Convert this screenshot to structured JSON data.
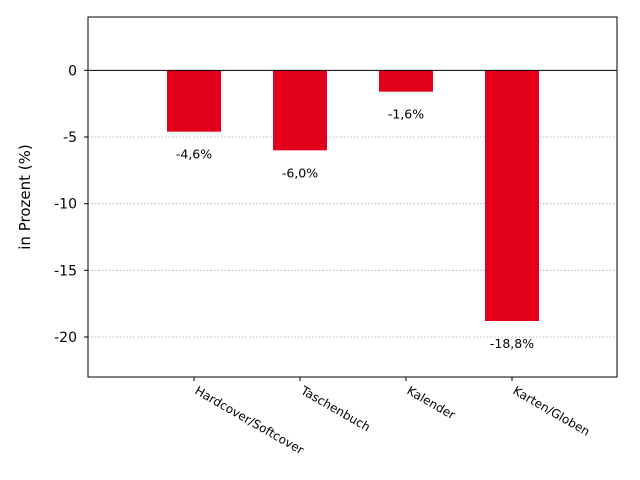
{
  "chart_data": {
    "type": "bar",
    "categories": [
      "Hardcover/Softcover",
      "Taschenbuch",
      "Kalender",
      "Karten/Globen"
    ],
    "values": [
      -4.6,
      -6.0,
      -1.6,
      -18.8
    ],
    "data_labels": [
      "-4,6%",
      "-6,0%",
      "-1,6%",
      "-18,8%"
    ],
    "ylabel": "in Prozent (%)",
    "ylim": [
      -23,
      4
    ],
    "yticks": [
      0,
      -5,
      -10,
      -15,
      -20
    ],
    "ytick_labels": [
      "0",
      "-5",
      "-10",
      "-15",
      "-20"
    ],
    "grid": "horizontal-dotted",
    "bar_color": "#e2001a",
    "grid_color": "#aaaaaa"
  }
}
